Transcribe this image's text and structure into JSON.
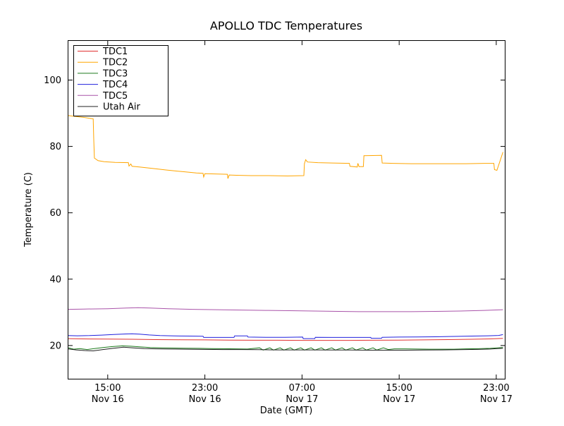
{
  "chart_data": {
    "type": "line",
    "title": "APOLLO TDC Temperatures",
    "xlabel": "Date (GMT)",
    "ylabel": "Temperature (C)",
    "grid": false,
    "legend_position": "upper-left",
    "background": "#ffffff",
    "axis_color": "#000000",
    "xlim": [
      11.7,
      47.7
    ],
    "ylim": [
      10,
      112
    ],
    "x_axis_note": "x values are hours since Nov 16 00:00 GMT",
    "yticks": [
      20,
      40,
      60,
      80,
      100
    ],
    "xticks": [
      {
        "pos": 15,
        "time": "15:00",
        "date": "Nov 16"
      },
      {
        "pos": 23,
        "time": "23:00",
        "date": "Nov 16"
      },
      {
        "pos": 31,
        "time": "07:00",
        "date": "Nov 17"
      },
      {
        "pos": 39,
        "time": "15:00",
        "date": "Nov 17"
      },
      {
        "pos": 47,
        "time": "23:00",
        "date": "Nov 17"
      }
    ],
    "series": [
      {
        "name": "TDC1",
        "color": "#e03131",
        "points": [
          [
            11.7,
            22.1
          ],
          [
            13.0,
            22.0
          ],
          [
            15.0,
            21.95
          ],
          [
            17.0,
            21.9
          ],
          [
            19.0,
            21.8
          ],
          [
            21.0,
            21.75
          ],
          [
            23.0,
            21.7
          ],
          [
            25.0,
            21.65
          ],
          [
            27.0,
            21.6
          ],
          [
            29.0,
            21.6
          ],
          [
            31.0,
            21.55
          ],
          [
            33.0,
            21.55
          ],
          [
            35.0,
            21.55
          ],
          [
            37.0,
            21.6
          ],
          [
            39.0,
            21.65
          ],
          [
            41.0,
            21.7
          ],
          [
            43.0,
            21.8
          ],
          [
            45.0,
            21.9
          ],
          [
            46.5,
            22.0
          ],
          [
            47.55,
            22.15
          ]
        ]
      },
      {
        "name": "TDC2",
        "color": "#ffa500",
        "points": [
          [
            11.7,
            89.3
          ],
          [
            12.4,
            89.0
          ],
          [
            13.1,
            88.7
          ],
          [
            13.8,
            88.3
          ],
          [
            13.85,
            82.0
          ],
          [
            13.9,
            76.5
          ],
          [
            14.2,
            75.7
          ],
          [
            14.7,
            75.4
          ],
          [
            15.6,
            75.2
          ],
          [
            16.7,
            75.1
          ],
          [
            16.75,
            74.1
          ],
          [
            16.9,
            74.7
          ],
          [
            17.0,
            74.0
          ],
          [
            17.6,
            73.8
          ],
          [
            18.6,
            73.4
          ],
          [
            19.8,
            72.9
          ],
          [
            21.2,
            72.4
          ],
          [
            22.3,
            72.0
          ],
          [
            22.85,
            71.9
          ],
          [
            22.9,
            70.8
          ],
          [
            23.0,
            71.8
          ],
          [
            23.8,
            71.7
          ],
          [
            24.85,
            71.6
          ],
          [
            24.9,
            70.3
          ],
          [
            25.0,
            71.4
          ],
          [
            25.6,
            71.3
          ],
          [
            26.8,
            71.2
          ],
          [
            28.2,
            71.2
          ],
          [
            29.8,
            71.1
          ],
          [
            31.15,
            71.2
          ],
          [
            31.2,
            74.8
          ],
          [
            31.3,
            76.0
          ],
          [
            31.45,
            75.3
          ],
          [
            32.3,
            75.1
          ],
          [
            33.5,
            75.0
          ],
          [
            34.9,
            74.9
          ],
          [
            34.95,
            74.0
          ],
          [
            35.55,
            73.8
          ],
          [
            35.6,
            74.9
          ],
          [
            35.7,
            73.9
          ],
          [
            36.05,
            73.9
          ],
          [
            36.1,
            77.2
          ],
          [
            37.55,
            77.3
          ],
          [
            37.6,
            75.0
          ],
          [
            38.5,
            74.9
          ],
          [
            40.0,
            74.8
          ],
          [
            41.5,
            74.8
          ],
          [
            43.0,
            74.8
          ],
          [
            44.5,
            74.8
          ],
          [
            46.0,
            74.9
          ],
          [
            46.8,
            74.9
          ],
          [
            46.85,
            73.0
          ],
          [
            47.05,
            72.8
          ],
          [
            47.3,
            75.5
          ],
          [
            47.55,
            78.3
          ]
        ]
      },
      {
        "name": "TDC3",
        "color": "#1d7a1d",
        "points": [
          [
            11.7,
            19.4
          ],
          [
            12.2,
            18.9
          ],
          [
            12.7,
            19.1
          ],
          [
            13.3,
            18.8
          ],
          [
            13.9,
            19.1
          ],
          [
            14.6,
            19.4
          ],
          [
            15.4,
            19.7
          ],
          [
            16.2,
            19.9
          ],
          [
            16.9,
            19.8
          ],
          [
            17.6,
            19.6
          ],
          [
            18.5,
            19.4
          ],
          [
            19.5,
            19.3
          ],
          [
            20.5,
            19.25
          ],
          [
            21.5,
            19.2
          ],
          [
            22.5,
            19.15
          ],
          [
            23.5,
            19.1
          ],
          [
            24.5,
            19.05
          ],
          [
            25.5,
            19.0
          ],
          [
            26.5,
            18.95
          ],
          [
            27.5,
            19.3
          ],
          [
            27.8,
            18.65
          ],
          [
            28.35,
            19.3
          ],
          [
            28.65,
            18.65
          ],
          [
            29.2,
            19.3
          ],
          [
            29.5,
            18.65
          ],
          [
            30.05,
            19.3
          ],
          [
            30.35,
            18.65
          ],
          [
            30.9,
            19.3
          ],
          [
            31.2,
            18.65
          ],
          [
            31.75,
            19.3
          ],
          [
            32.05,
            18.65
          ],
          [
            32.6,
            19.3
          ],
          [
            32.9,
            18.65
          ],
          [
            33.45,
            19.3
          ],
          [
            33.75,
            18.65
          ],
          [
            34.3,
            19.3
          ],
          [
            34.6,
            18.65
          ],
          [
            35.15,
            19.3
          ],
          [
            35.45,
            18.65
          ],
          [
            36.0,
            19.3
          ],
          [
            36.3,
            18.65
          ],
          [
            36.85,
            19.3
          ],
          [
            37.15,
            18.65
          ],
          [
            37.7,
            19.3
          ],
          [
            38.1,
            18.8
          ],
          [
            38.6,
            19.0
          ],
          [
            39.5,
            19.0
          ],
          [
            40.5,
            18.95
          ],
          [
            41.5,
            18.9
          ],
          [
            42.5,
            18.9
          ],
          [
            43.5,
            18.9
          ],
          [
            44.5,
            19.0
          ],
          [
            45.5,
            19.05
          ],
          [
            46.5,
            19.15
          ],
          [
            47.55,
            19.4
          ]
        ]
      },
      {
        "name": "TDC4",
        "color": "#2020dd",
        "points": [
          [
            11.7,
            23.0
          ],
          [
            12.5,
            22.95
          ],
          [
            13.5,
            23.0
          ],
          [
            14.5,
            23.15
          ],
          [
            15.5,
            23.35
          ],
          [
            16.5,
            23.5
          ],
          [
            17.0,
            23.55
          ],
          [
            17.6,
            23.45
          ],
          [
            18.4,
            23.2
          ],
          [
            19.3,
            23.0
          ],
          [
            20.5,
            22.9
          ],
          [
            21.8,
            22.85
          ],
          [
            22.85,
            22.8
          ],
          [
            22.9,
            22.45
          ],
          [
            24.2,
            22.45
          ],
          [
            25.4,
            22.45
          ],
          [
            25.45,
            22.9
          ],
          [
            26.5,
            22.9
          ],
          [
            26.55,
            22.55
          ],
          [
            28.0,
            22.5
          ],
          [
            29.6,
            22.5
          ],
          [
            31.05,
            22.55
          ],
          [
            31.1,
            22.1
          ],
          [
            32.05,
            22.1
          ],
          [
            32.1,
            22.5
          ],
          [
            33.5,
            22.45
          ],
          [
            35.0,
            22.45
          ],
          [
            36.65,
            22.45
          ],
          [
            36.7,
            22.2
          ],
          [
            37.55,
            22.2
          ],
          [
            37.6,
            22.5
          ],
          [
            39.0,
            22.55
          ],
          [
            40.5,
            22.6
          ],
          [
            42.0,
            22.65
          ],
          [
            43.5,
            22.75
          ],
          [
            45.0,
            22.85
          ],
          [
            46.3,
            22.95
          ],
          [
            47.2,
            23.05
          ],
          [
            47.55,
            23.3
          ]
        ]
      },
      {
        "name": "TDC5",
        "color": "#a953a9",
        "points": [
          [
            11.7,
            30.9
          ],
          [
            13.0,
            31.0
          ],
          [
            15.0,
            31.1
          ],
          [
            16.5,
            31.3
          ],
          [
            17.5,
            31.4
          ],
          [
            18.5,
            31.3
          ],
          [
            20.0,
            31.1
          ],
          [
            22.0,
            30.9
          ],
          [
            24.0,
            30.8
          ],
          [
            26.0,
            30.7
          ],
          [
            28.0,
            30.6
          ],
          [
            30.0,
            30.5
          ],
          [
            32.0,
            30.4
          ],
          [
            34.0,
            30.3
          ],
          [
            36.0,
            30.2
          ],
          [
            38.0,
            30.2
          ],
          [
            40.0,
            30.2
          ],
          [
            42.0,
            30.3
          ],
          [
            44.0,
            30.4
          ],
          [
            46.0,
            30.6
          ],
          [
            47.55,
            30.8
          ]
        ]
      },
      {
        "name": "Utah Air",
        "color": "#202020",
        "points": [
          [
            11.7,
            19.0
          ],
          [
            12.4,
            18.7
          ],
          [
            13.1,
            18.5
          ],
          [
            13.8,
            18.4
          ],
          [
            14.6,
            18.8
          ],
          [
            15.5,
            19.2
          ],
          [
            16.3,
            19.5
          ],
          [
            17.1,
            19.3
          ],
          [
            18.0,
            19.1
          ],
          [
            19.0,
            19.0
          ],
          [
            20.0,
            18.95
          ],
          [
            21.5,
            18.9
          ],
          [
            23.0,
            18.85
          ],
          [
            24.5,
            18.8
          ],
          [
            26.0,
            18.8
          ],
          [
            27.5,
            18.75
          ],
          [
            29.0,
            18.7
          ],
          [
            30.5,
            18.7
          ],
          [
            32.0,
            18.7
          ],
          [
            33.5,
            18.65
          ],
          [
            35.0,
            18.65
          ],
          [
            36.5,
            18.6
          ],
          [
            38.0,
            18.6
          ],
          [
            39.5,
            18.6
          ],
          [
            41.0,
            18.65
          ],
          [
            42.5,
            18.7
          ],
          [
            44.0,
            18.75
          ],
          [
            45.5,
            18.85
          ],
          [
            46.5,
            18.95
          ],
          [
            47.55,
            19.2
          ]
        ]
      }
    ]
  }
}
